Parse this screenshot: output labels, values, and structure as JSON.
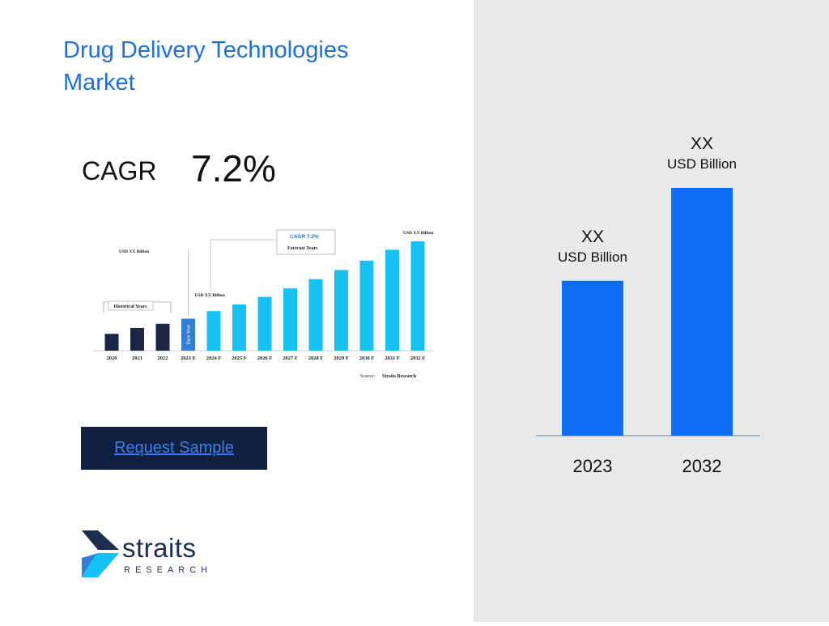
{
  "page": {
    "title": "Drug Delivery Technologies Market",
    "cagr_label": "CAGR",
    "cagr_value": "7.2%",
    "button_label": "Request Sample",
    "logo": {
      "word": "straits",
      "sub": "RESEARCH"
    },
    "colors": {
      "title": "#1f6fd6",
      "bar": "#0f6cf5",
      "panel": "#e8e9eb",
      "button": "#0f2040"
    }
  },
  "chart_data": [
    {
      "type": "bar",
      "categories": [
        "2023",
        "2032"
      ],
      "values": [
        1.0,
        1.6
      ],
      "value_labels": [
        {
          "value": "XX",
          "unit": "USD Billion"
        },
        {
          "value": "XX",
          "unit": "USD Billion"
        }
      ],
      "title": "",
      "xlabel": "",
      "ylabel": "",
      "grid": false,
      "bar_color": "#0f6cf5"
    },
    {
      "type": "bar",
      "categories": [
        "2020",
        "2021",
        "2022",
        "2023 E",
        "2024 F",
        "2025 F",
        "2026 F",
        "2027 F",
        "2028 F",
        "2029 F",
        "2030 F",
        "2031 F",
        "2032 F"
      ],
      "values": [
        2.0,
        2.7,
        3.2,
        3.8,
        4.7,
        5.5,
        6.4,
        7.4,
        8.5,
        9.6,
        10.7,
        12.0,
        13.0
      ],
      "historical_count": 3,
      "base_year_index": 3,
      "annotations": {
        "historical": "Historical Years",
        "forecast": "Forecast Years",
        "cagr": "CAGR 7.2%",
        "base_year": "Base Year",
        "start_label": "USD XX Billion",
        "base_label": "USD XX Billion",
        "end_label": "USD XX Billion",
        "source_prefix": "Source:",
        "source_name": "Straits Research"
      },
      "colors": {
        "historical": "#1a2744",
        "base": "#2f7fd8",
        "forecast": "#16c2f5"
      }
    }
  ]
}
